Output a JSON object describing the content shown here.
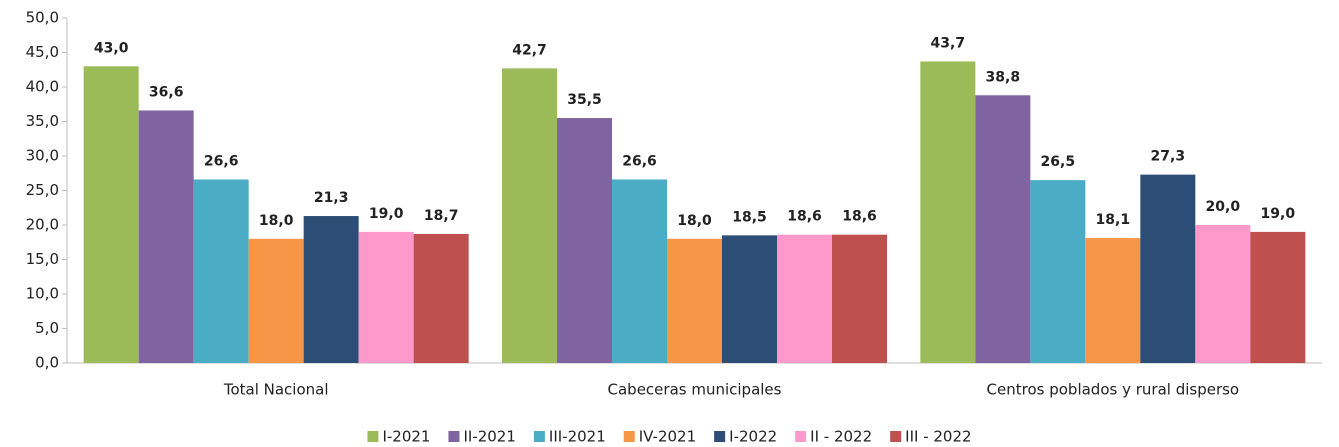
{
  "chart_data": {
    "type": "bar",
    "categories": [
      "Total Nacional",
      "Cabeceras municipales",
      "Centros poblados y rural disperso"
    ],
    "series": [
      {
        "name": "I-2021",
        "color": "#9bbb59",
        "values": [
          43.0,
          42.7,
          43.7
        ],
        "value_labels": [
          "43,0",
          "42,7",
          "43,7"
        ]
      },
      {
        "name": "II-2021",
        "color": "#8064a2",
        "values": [
          36.6,
          35.5,
          38.8
        ],
        "value_labels": [
          "36,6",
          "35,5",
          "38,8"
        ]
      },
      {
        "name": "III-2021",
        "color": "#4bacc6",
        "values": [
          26.6,
          26.6,
          26.5
        ],
        "value_labels": [
          "26,6",
          "26,6",
          "26,5"
        ]
      },
      {
        "name": "IV-2021",
        "color": "#f79646",
        "values": [
          18.0,
          18.0,
          18.1
        ],
        "value_labels": [
          "18,0",
          "18,0",
          "18,1"
        ]
      },
      {
        "name": "I-2022",
        "color": "#2c4d75",
        "values": [
          21.3,
          18.5,
          27.3
        ],
        "value_labels": [
          "21,3",
          "18,5",
          "27,3"
        ]
      },
      {
        "name": "II - 2022",
        "color": "#ff99cc",
        "values": [
          19.0,
          18.6,
          20.0
        ],
        "value_labels": [
          "19,0",
          "18,6",
          "20,0"
        ]
      },
      {
        "name": "III - 2022",
        "color": "#c0504d",
        "values": [
          18.7,
          18.6,
          19.0
        ],
        "value_labels": [
          "18,7",
          "18,6",
          "19,0"
        ]
      }
    ],
    "ylim": [
      0,
      50
    ],
    "yticks": [
      {
        "value": 0,
        "label": "0,0"
      },
      {
        "value": 5,
        "label": "5,0"
      },
      {
        "value": 10,
        "label": "10,0"
      },
      {
        "value": 15,
        "label": "15,0"
      },
      {
        "value": 20,
        "label": "20,0"
      },
      {
        "value": 25,
        "label": "25,0"
      },
      {
        "value": 30,
        "label": "30,0"
      },
      {
        "value": 35,
        "label": "35,0"
      },
      {
        "value": 40,
        "label": "40,0"
      },
      {
        "value": 45,
        "label": "45,0"
      },
      {
        "value": 50,
        "label": "50,0"
      }
    ],
    "legend": "bottom"
  }
}
